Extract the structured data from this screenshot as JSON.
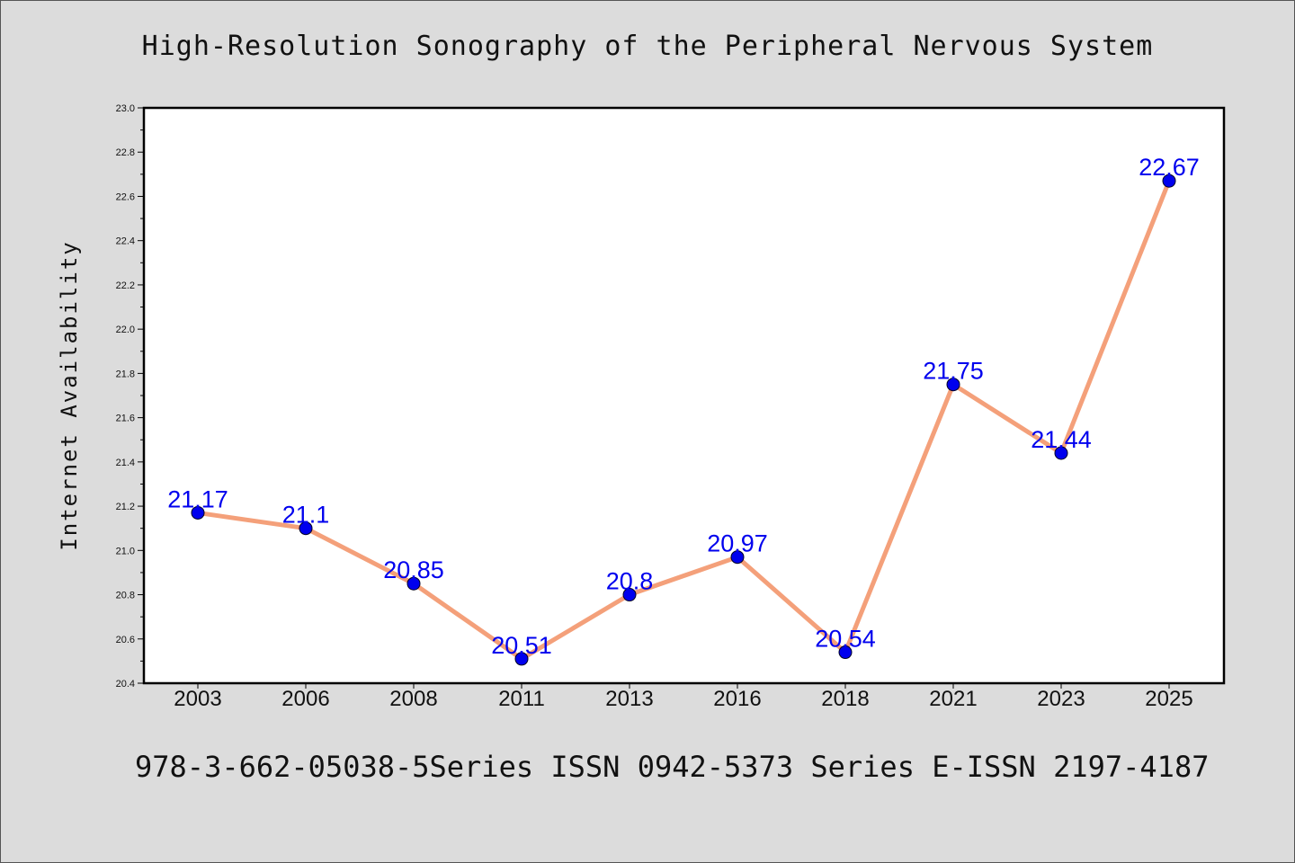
{
  "header": {
    "title": "High-Resolution Sonography of the Peripheral Nervous System"
  },
  "footer": {
    "text": "978-3-662-05038-5Series ISSN 0942-5373 Series E-ISSN 2197-4187"
  },
  "chart_data": {
    "type": "line",
    "title": "High-Resolution Sonography of the Peripheral Nervous System",
    "xlabel": "",
    "ylabel": "Internet Availability",
    "categories": [
      "2003",
      "2006",
      "2008",
      "2011",
      "2013",
      "2016",
      "2018",
      "2021",
      "2023",
      "2025"
    ],
    "series": [
      {
        "values": [
          21.17,
          21.1,
          20.85,
          20.51,
          20.8,
          20.97,
          20.54,
          21.75,
          21.44,
          22.67
        ],
        "labels": [
          "21.17",
          "21.1",
          "20.85",
          "20.51",
          "20.8",
          "20.97",
          "20.54",
          "21.75",
          "21.44",
          "22.67"
        ]
      }
    ],
    "ylim": [
      20.4,
      23.0
    ],
    "yticks": [
      "20.4",
      "20.6",
      "20.8",
      "21.0",
      "21.2",
      "21.4",
      "21.6",
      "21.8",
      "22.0",
      "22.2",
      "22.4",
      "22.6",
      "22.8",
      "23.0"
    ],
    "grid": false,
    "legend": "none",
    "colors": {
      "line": "#f4a07a",
      "marker": "#0000ee",
      "label": "#0000ee",
      "plot_background": "#ffffff",
      "page_background": "#dcdcdc"
    }
  }
}
